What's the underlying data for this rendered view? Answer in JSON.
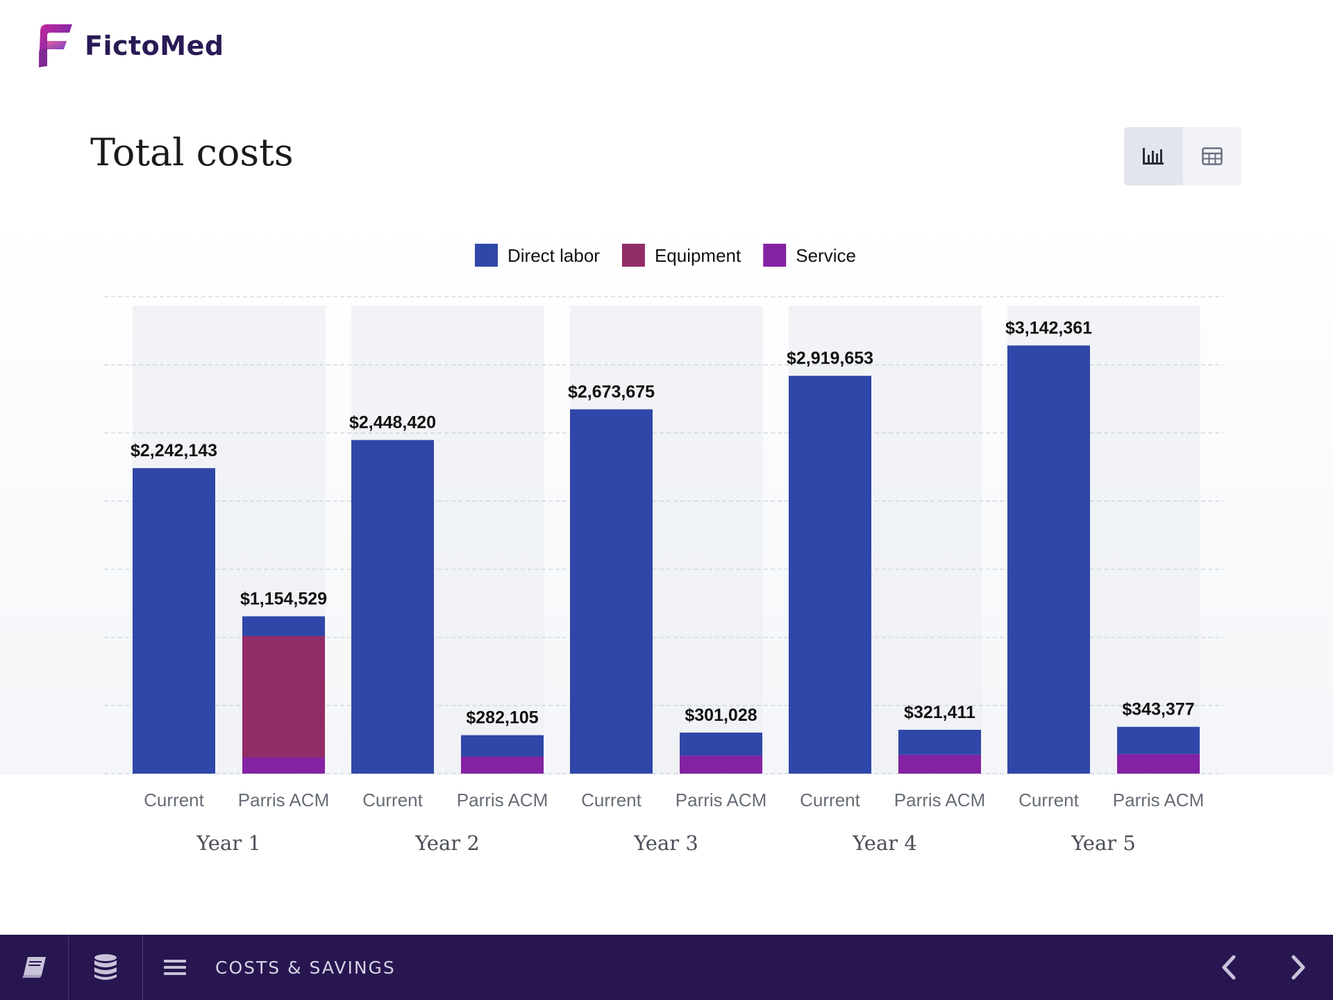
{
  "app": {
    "name": "FictoMed"
  },
  "page": {
    "title": "Total costs"
  },
  "view_toggle": {
    "chart_icon": "bar-chart-icon",
    "table_icon": "table-icon",
    "active": "chart"
  },
  "footer": {
    "section_label": "COSTS & SAVINGS",
    "icons": [
      "book-icon",
      "database-icon",
      "menu-icon",
      "chevron-left-icon",
      "chevron-right-icon"
    ]
  },
  "colors": {
    "direct_labor": "#2f47a8",
    "equipment": "#922c66",
    "service": "#8322a2",
    "footer_bg": "#281650",
    "brand": "#2a1a55"
  },
  "chart_data": {
    "type": "bar",
    "stacked": true,
    "groups": [
      "Year 1",
      "Year 2",
      "Year 3",
      "Year 4",
      "Year 5"
    ],
    "sub_categories": [
      "Current",
      "Parris ACM"
    ],
    "legend": {
      "placement": "top-center",
      "entries": [
        "Direct labor",
        "Equipment",
        "Service"
      ]
    },
    "grid": true,
    "ylim": [
      0,
      3500000
    ],
    "series": [
      {
        "name": "Direct labor",
        "color": "#2f47a8",
        "values": [
          2242143,
          145000,
          2448420,
          157000,
          2673675,
          169000,
          2919653,
          183000,
          3142361,
          200000
        ]
      },
      {
        "name": "Equipment",
        "color": "#922c66",
        "values": [
          0,
          890000,
          0,
          0,
          0,
          0,
          0,
          0,
          0,
          0
        ]
      },
      {
        "name": "Service",
        "color": "#8322a2",
        "values": [
          0,
          119529,
          0,
          125105,
          0,
          132028,
          0,
          138411,
          0,
          143377
        ]
      }
    ],
    "totals": [
      2242143,
      1154529,
      2448420,
      282105,
      2673675,
      301028,
      2919653,
      321411,
      3142361,
      343377
    ],
    "total_labels": [
      "$2,242,143",
      "$1,154,529",
      "$2,448,420",
      "$282,105",
      "$2,673,675",
      "$301,028",
      "$2,919,653",
      "$321,411",
      "$3,142,361",
      "$343,377"
    ]
  }
}
